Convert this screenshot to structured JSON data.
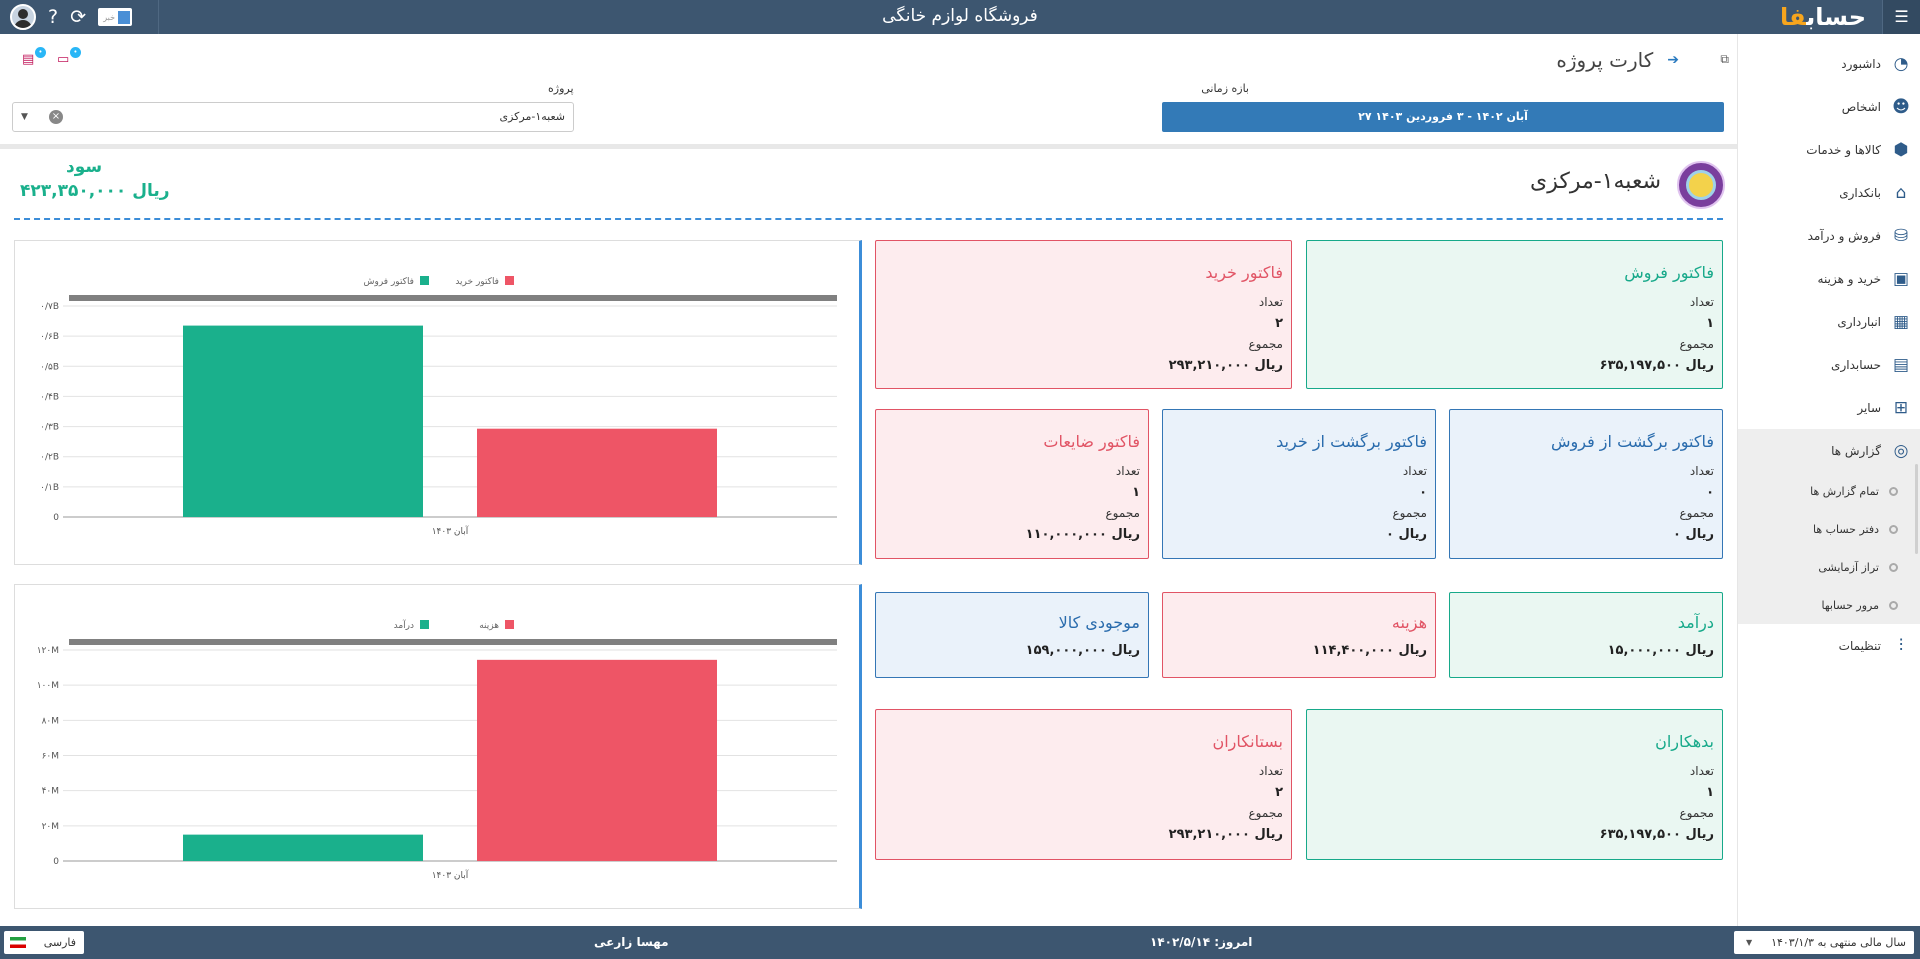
{
  "topbar": {
    "title": "فروشگاه لوازم خانگی",
    "logo_text": "حساب",
    "logo_mark": "فا",
    "news_label": "خبر"
  },
  "sidebar": {
    "items": [
      {
        "label": "داشبورد",
        "icon": "dashboard-icon",
        "glyph": "◔"
      },
      {
        "label": "اشخاص",
        "icon": "people-icon",
        "glyph": "👥"
      },
      {
        "label": "کالاها و خدمات",
        "icon": "box-icon",
        "glyph": "⬢"
      },
      {
        "label": "بانکداری",
        "icon": "bank-icon",
        "glyph": "🏛"
      },
      {
        "label": "فروش و درآمد",
        "icon": "sales-icon",
        "glyph": "⛀"
      },
      {
        "label": "خرید و هزینه",
        "icon": "wallet-icon",
        "glyph": "▣"
      },
      {
        "label": "انبارداری",
        "icon": "warehouse-icon",
        "glyph": "▦"
      },
      {
        "label": "حسابداری",
        "icon": "ledger-icon",
        "glyph": "▤"
      },
      {
        "label": "سایر",
        "icon": "misc-icon",
        "glyph": "⊞"
      },
      {
        "label": "گزارش ها",
        "icon": "reports-icon",
        "glyph": "◎"
      }
    ],
    "sub_items": [
      "تمام گزارش ها",
      "دفتر حساب ها",
      "تراز آزمایشی",
      "مرور حسابها"
    ],
    "settings": {
      "label": "تنظیمات",
      "icon": "sliders-icon",
      "glyph": "⫶"
    }
  },
  "header": {
    "page_title": "کارت پروژه",
    "period_label": "بازه زمانی",
    "period_value": "۲۷ آبان ۱۴۰۲ - ۳ فروردین ۱۴۰۳",
    "project_label": "پروژه",
    "project_value": "شعبه۱-مرکزی"
  },
  "entity": {
    "name": "شعبه۱-مرکزی",
    "profit_label": "سود",
    "profit_value": "۴۲۳,۳۵۰,۰۰۰ ریال"
  },
  "labels": {
    "count": "تعداد",
    "total": "مجموع"
  },
  "cards": {
    "sales": {
      "title": "فاکتور فروش",
      "count": "۱",
      "total": "۶۳۵,۱۹۷,۵۰۰ ریال"
    },
    "purchase": {
      "title": "فاکتور خرید",
      "count": "۲",
      "total": "۲۹۳,۲۱۰,۰۰۰ ریال"
    },
    "sales_return": {
      "title": "فاکتور برگشت از فروش",
      "count": "۰",
      "total": "۰ ریال"
    },
    "purchase_return": {
      "title": "فاکتور برگشت از خرید",
      "count": "۰",
      "total": "۰ ریال"
    },
    "waste": {
      "title": "فاکتور ضایعات",
      "count": "۱",
      "total": "۱۱۰,۰۰۰,۰۰۰ ریال"
    },
    "income": {
      "title": "درآمد",
      "total": "۱۵,۰۰۰,۰۰۰ ریال"
    },
    "expense": {
      "title": "هزینه",
      "total": "۱۱۴,۴۰۰,۰۰۰ ریال"
    },
    "inventory": {
      "title": "موجودی کالا",
      "total": "۱۵۹,۰۰۰,۰۰۰ ریال"
    },
    "debtors": {
      "title": "بدهکاران",
      "count": "۱",
      "total": "۶۳۵,۱۹۷,۵۰۰ ریال"
    },
    "creditors": {
      "title": "بستانکاران",
      "count": "۲",
      "total": "۲۹۳,۲۱۰,۰۰۰ ریال"
    }
  },
  "chart_data": [
    {
      "type": "bar",
      "categories": [
        "آبان ۱۴۰۳"
      ],
      "series": [
        {
          "name": "فاکتور فروش",
          "color": "#1ab08c",
          "values": [
            0.635
          ]
        },
        {
          "name": "فاکتور خرید",
          "color": "#ee5566",
          "values": [
            0.293
          ]
        }
      ],
      "yticks": [
        "0",
        "۰/۱B",
        "۰/۲B",
        "۰/۳B",
        "۰/۴B",
        "۰/۵B",
        "۰/۶B",
        "۰/۷B"
      ],
      "ylim": [
        0,
        0.7
      ],
      "legend": "top"
    },
    {
      "type": "bar",
      "categories": [
        "آبان ۱۴۰۳"
      ],
      "series": [
        {
          "name": "درآمد",
          "color": "#1ab08c",
          "values": [
            15
          ]
        },
        {
          "name": "هزینه",
          "color": "#ee5566",
          "values": [
            114.4
          ]
        }
      ],
      "yticks": [
        "0",
        "۲۰M",
        "۴۰M",
        "۶۰M",
        "۸۰M",
        "۱۰۰M",
        "۱۲۰M"
      ],
      "ylim": [
        0,
        120
      ],
      "legend": "top"
    }
  ],
  "footer": {
    "fiscal_year": "سال مالی منتهی به ۱۴۰۳/۱/۳",
    "today": "امروز: ۱۴۰۲/۵/۱۴",
    "user": "مهسا زارعی",
    "language": "فارسی"
  },
  "colors": {
    "primary": "#3d5670",
    "accent": "#337ab7",
    "green": "#1ab08c",
    "red": "#ee5566"
  }
}
